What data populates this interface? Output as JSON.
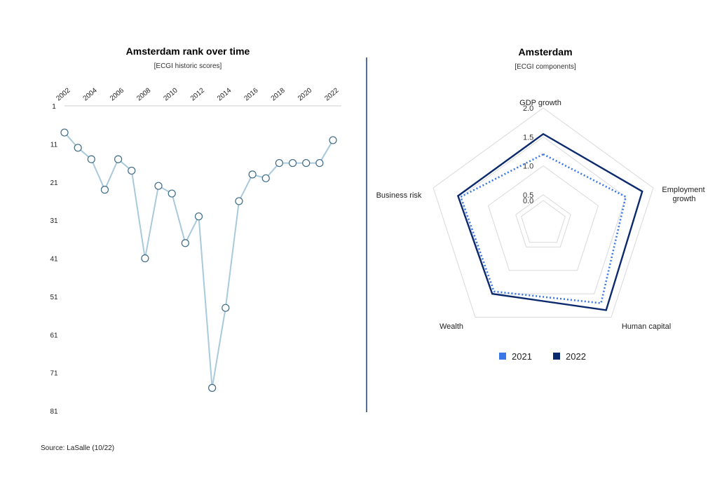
{
  "colors": {
    "line_series": "#a9c9dc",
    "marker_stroke": "#3e6b86",
    "series_2021": "#3b78e7",
    "series_2022": "#0b2a6e",
    "divider": "#1f3f6a",
    "grid": "#d9d9d9"
  },
  "source": "Source: LaSalle (10/22)",
  "chart_data": [
    {
      "type": "line",
      "title": "Amsterdam rank over time",
      "subtitle": "[ECGI historic scores]",
      "x_tick_labels": [
        "2002",
        "2004",
        "2006",
        "2008",
        "2010",
        "2012",
        "2014",
        "2016",
        "2018",
        "2020",
        "2022"
      ],
      "y_tick_labels": [
        "1",
        "11",
        "21",
        "31",
        "41",
        "51",
        "61",
        "71",
        "81"
      ],
      "ylim": [
        1,
        81
      ],
      "y_inverted": true,
      "x_axis_position": "top",
      "grid": false,
      "x": [
        2002,
        2003,
        2004,
        2005,
        2006,
        2007,
        2008,
        2009,
        2010,
        2011,
        2012,
        2013,
        2014,
        2015,
        2016,
        2017,
        2018,
        2019,
        2020,
        2021,
        2022
      ],
      "series": [
        {
          "values": [
            8,
            12,
            15,
            23,
            15,
            18,
            41,
            22,
            24,
            37,
            30,
            75,
            54,
            26,
            19,
            20,
            16,
            16,
            16,
            16,
            10
          ]
        }
      ]
    },
    {
      "type": "radar",
      "title": "Amsterdam",
      "subtitle": "[ECGI components]",
      "axes": [
        "GDP growth",
        "Employment growth",
        "Human capital",
        "Wealth",
        "Business risk"
      ],
      "radial_tick_labels": [
        "0.0",
        "0.5",
        "1.0",
        "1.5",
        "2.0"
      ],
      "rlim": [
        0,
        2.0
      ],
      "legend_position": "bottom",
      "series": [
        {
          "name": "2021",
          "values": [
            1.2,
            1.5,
            1.7,
            1.45,
            1.5
          ],
          "style": "dotted"
        },
        {
          "name": "2022",
          "values": [
            1.55,
            1.8,
            1.85,
            1.5,
            1.55
          ],
          "style": "solid"
        }
      ]
    }
  ]
}
